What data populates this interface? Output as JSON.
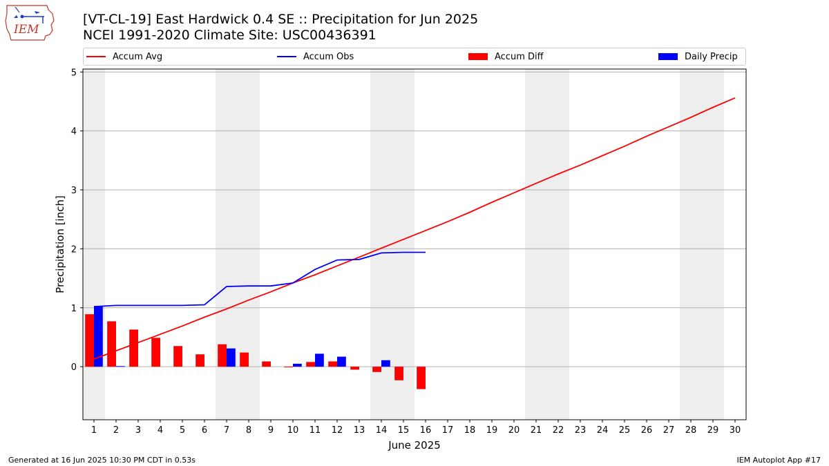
{
  "header": {
    "logo_text": "IEM",
    "title": "[VT-CL-19] East Hardwick 0.4 SE :: Precipitation for Jun 2025",
    "subtitle": "NCEI 1991-2020 Climate Site: USC00436391"
  },
  "legend": {
    "placement": "top",
    "items": [
      {
        "label": "Accum Avg",
        "color": "#ff0000",
        "kind": "line"
      },
      {
        "label": "Accum Obs",
        "color": "#0000ff",
        "kind": "line"
      },
      {
        "label": "Accum Diff",
        "color": "#ff0000",
        "kind": "box"
      },
      {
        "label": "Daily Precip",
        "color": "#0000ff",
        "kind": "box"
      }
    ]
  },
  "chart_data": {
    "type": "bar",
    "title": "[VT-CL-19] East Hardwick 0.4 SE :: Precipitation for Jun 2025",
    "xlabel": "June 2025",
    "ylabel": "Precipitation [inch]",
    "xlim": [
      0.5,
      30.5
    ],
    "ylim": [
      -0.9,
      5.05
    ],
    "x_ticks": [
      1,
      2,
      3,
      4,
      5,
      6,
      7,
      8,
      9,
      10,
      11,
      12,
      13,
      14,
      15,
      16,
      17,
      18,
      19,
      20,
      21,
      22,
      23,
      24,
      25,
      26,
      27,
      28,
      29,
      30
    ],
    "y_ticks": [
      0,
      1,
      2,
      3,
      4,
      5
    ],
    "grid": "horizontal",
    "weekend_shading": [
      [
        0.5,
        1.5
      ],
      [
        6.5,
        8.5
      ],
      [
        13.5,
        15.5
      ],
      [
        20.5,
        22.5
      ],
      [
        27.5,
        29.5
      ]
    ],
    "shade_color": "#eeeeee",
    "series": [
      {
        "name": "Accum Avg",
        "type": "line",
        "color": "#ff0000",
        "x": [
          1,
          2,
          3,
          4,
          5,
          6,
          7,
          8,
          9,
          10,
          11,
          12,
          13,
          14,
          15,
          16,
          17,
          18,
          19,
          20,
          21,
          22,
          23,
          24,
          25,
          26,
          27,
          28,
          29,
          30
        ],
        "values": [
          0.13,
          0.27,
          0.41,
          0.55,
          0.69,
          0.84,
          0.98,
          1.13,
          1.27,
          1.42,
          1.56,
          1.71,
          1.86,
          2.01,
          2.16,
          2.31,
          2.46,
          2.62,
          2.79,
          2.95,
          3.11,
          3.27,
          3.42,
          3.58,
          3.74,
          3.91,
          4.07,
          4.23,
          4.4,
          4.56
        ]
      },
      {
        "name": "Accum Obs",
        "type": "line",
        "color": "#0000ff",
        "x": [
          1,
          2,
          3,
          4,
          5,
          6,
          7,
          8,
          9,
          10,
          11,
          12,
          13,
          14,
          15,
          16
        ],
        "values": [
          1.02,
          1.04,
          1.04,
          1.04,
          1.04,
          1.05,
          1.36,
          1.37,
          1.37,
          1.42,
          1.65,
          1.81,
          1.82,
          1.93,
          1.94,
          1.94
        ]
      },
      {
        "name": "Accum Diff",
        "type": "bar",
        "color": "#ff0000",
        "x": [
          1,
          2,
          3,
          4,
          5,
          6,
          7,
          8,
          9,
          10,
          11,
          12,
          13,
          14,
          15,
          16
        ],
        "values": [
          0.89,
          0.77,
          0.63,
          0.49,
          0.35,
          0.21,
          0.38,
          0.24,
          0.09,
          -0.01,
          0.08,
          0.09,
          -0.05,
          -0.09,
          -0.23,
          -0.38
        ]
      },
      {
        "name": "Daily Precip",
        "type": "bar",
        "color": "#0000ff",
        "x": [
          1,
          2,
          3,
          4,
          5,
          6,
          7,
          8,
          9,
          10,
          11,
          12,
          13,
          14,
          15,
          16
        ],
        "values": [
          1.03,
          0.01,
          0,
          0,
          0,
          0,
          0.31,
          0,
          0,
          0.05,
          0.22,
          0.17,
          0,
          0.11,
          0,
          0
        ]
      }
    ]
  },
  "footer": {
    "left": "Generated at 16 Jun 2025 10:30 PM CDT in 0.53s",
    "right": "IEM Autoplot App #17"
  }
}
